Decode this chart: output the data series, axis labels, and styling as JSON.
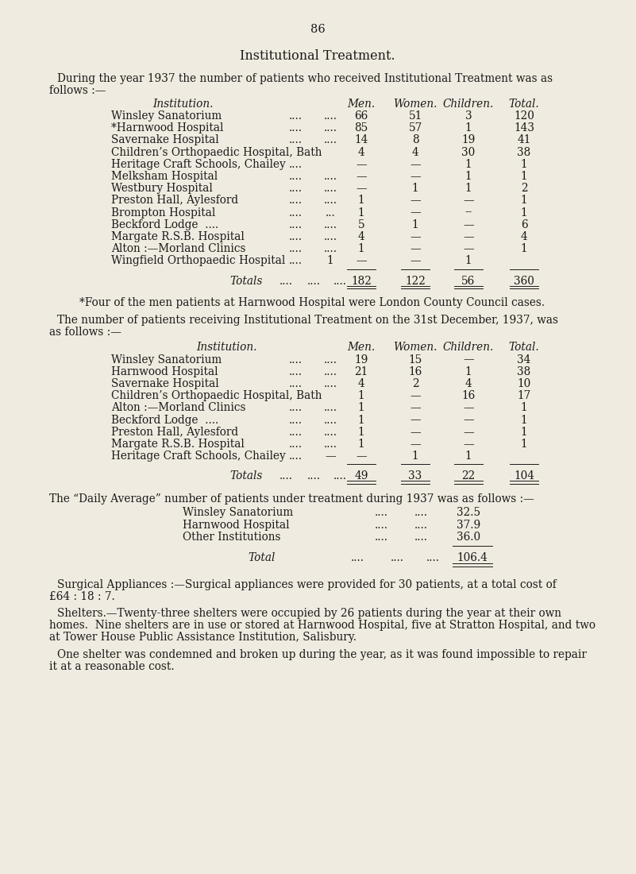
{
  "page_number": "86",
  "title": "Institutional Treatment.",
  "bg_color": "#f0ebe0",
  "text_color": "#1a1a1a",
  "para1_line1": "During the year 1937 the number of patients who received Institutional Treatment was as",
  "para1_line2": "follows :—",
  "table1_rows": [
    [
      "Winsley Sanatorium",
      "....",
      "....",
      "66",
      "51",
      "3",
      "120"
    ],
    [
      "*Harnwood Hospital",
      "....",
      "....",
      "85",
      "57",
      "1",
      "143"
    ],
    [
      "Savernake Hospital",
      "....",
      "....",
      "14",
      "8",
      "19",
      "41"
    ],
    [
      "Children’s Orthopaedic Hospital, Bath",
      "",
      "",
      "4",
      "4",
      "30",
      "38"
    ],
    [
      "Heritage Craft Schools, Chailey",
      "....",
      "",
      "—",
      "—",
      "1",
      "1"
    ],
    [
      "Melksham Hospital",
      "....",
      "....",
      "—",
      "—",
      "1",
      "1"
    ],
    [
      "Westbury Hospital",
      "....",
      "....",
      "—",
      "1",
      "1",
      "2"
    ],
    [
      "Preston Hall, Aylesford",
      "....",
      "....",
      "1",
      "—",
      "—",
      "1"
    ],
    [
      "Brompton Hospital",
      "....",
      "...",
      "1",
      "—",
      "--",
      "1"
    ],
    [
      "Beckford Lodge  ....",
      "....",
      "....",
      "5",
      "1",
      "—",
      "6"
    ],
    [
      "Margate R.S.B. Hospital",
      "....",
      "....",
      "4",
      "—",
      "—",
      "4"
    ],
    [
      "Alton :—Morland Clinics",
      "....",
      "....",
      "1",
      "—",
      "—",
      "1"
    ],
    [
      "Wingfield Orthopaedic Hospital",
      "....",
      "1",
      "—",
      "—",
      "1",
      ""
    ]
  ],
  "table1_totals": [
    "182",
    "122",
    "56",
    "360"
  ],
  "footnote1": "*Four of the men patients at Harnwood Hospital were London County Council cases.",
  "para2_line1": "The number of patients receiving Institutional Treatment on the 31st December, 1937, was",
  "para2_line2": "as follows :—",
  "table2_rows": [
    [
      "Winsley Sanatorium",
      "....",
      "....",
      "19",
      "15",
      "—",
      "34"
    ],
    [
      "Harnwood Hospital",
      "....",
      "....",
      "21",
      "16",
      "1",
      "38"
    ],
    [
      "Savernake Hospital",
      "....",
      "....",
      "4",
      "2",
      "4",
      "10"
    ],
    [
      "Children’s Orthopaedic Hospital, Bath",
      "",
      "",
      "1",
      "—",
      "16",
      "17"
    ],
    [
      "Alton :—Morland Clinics",
      "....",
      "....",
      "1",
      "—",
      "—",
      "1"
    ],
    [
      "Beckford Lodge  ....",
      "....",
      "....",
      "1",
      "—",
      "—",
      "1"
    ],
    [
      "Preston Hall, Aylesford",
      "....",
      "....",
      "1",
      "—",
      "—",
      "1"
    ],
    [
      "Margate R.S.B. Hospital",
      "....",
      "....",
      "1",
      "—",
      "—",
      "1"
    ],
    [
      "Heritage Craft Schools, Chailey",
      "....",
      "—",
      "—",
      "1",
      "1",
      ""
    ]
  ],
  "table2_totals": [
    "49",
    "33",
    "22",
    "104"
  ],
  "para3": "The “Daily Average” number of patients under treatment during 1937 was as follows :—",
  "daily_avg_rows": [
    [
      "Winsley Sanatorium",
      "....",
      "....",
      "32.5"
    ],
    [
      "Harnwood Hospital",
      "....",
      "....",
      "37.9"
    ],
    [
      "Other Institutions",
      "....",
      "....",
      "36.0"
    ]
  ],
  "daily_avg_total": "106.4",
  "para4_line1": "Surgical Appliances :—Surgical appliances were provided for 30 patients, at a total cost of",
  "para4_line2": "£64 : 18 : 7.",
  "para5_line1": "Shelters.—Twenty-three shelters were occupied by 26 patients during the year at their own",
  "para5_line2": "homes.  Nine shelters are in use or stored at Harnwood Hospital, five at Stratton Hospital, and two",
  "para5_line3": "at Tower House Public Assistance Institution, Salisbury.",
  "para6_line1": "One shelter was condemned and broken up during the year, as it was found impossible to repair",
  "para6_line2": "it at a reasonable cost."
}
